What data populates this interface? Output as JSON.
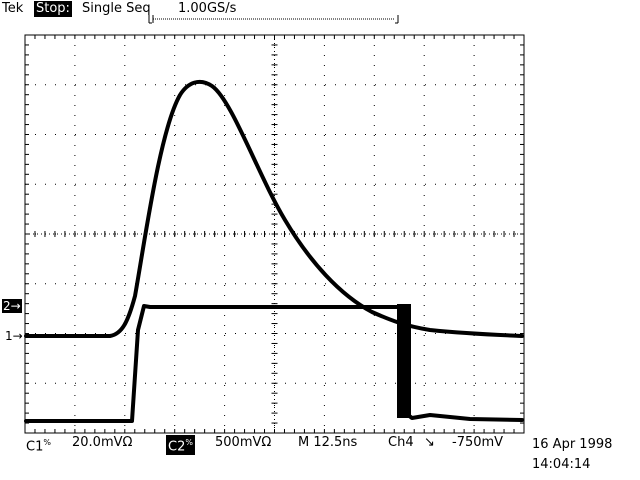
{
  "header": {
    "brand": "Tek",
    "run_state": "Stop:",
    "acq_mode": "Single Seq",
    "sample_rate": "1.00GS/s"
  },
  "channels": [
    {
      "label": "C1",
      "coupling_icon": "ac-coupling-icon",
      "scale": "20.0mVΩ",
      "marker": "1→"
    },
    {
      "label": "C2",
      "coupling_icon": "ac-coupling-icon",
      "scale": "500mVΩ",
      "marker": "2→"
    }
  ],
  "timebase": "M 12.5ns",
  "trigger": {
    "source": "Ch4",
    "slope_icon": "falling-edge-icon",
    "slope_glyph": "↘",
    "level": "-750mV"
  },
  "timestamp": {
    "date": "16 Apr 1998",
    "time": "14:04:14"
  },
  "colors": {
    "trace": "#000000",
    "background": "#ffffff",
    "graticule": "#000000"
  }
}
